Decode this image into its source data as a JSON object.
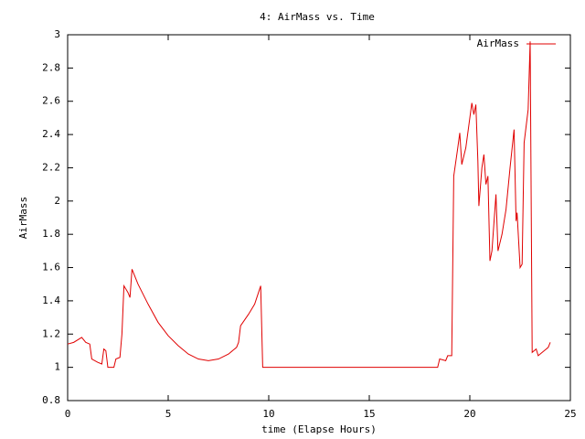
{
  "chart_data": {
    "type": "line",
    "title": "4: AirMass vs. Time",
    "x_label": "time (Elapse Hours)",
    "y_label": "AirMass",
    "xlim": [
      0,
      25
    ],
    "xticks": [
      0,
      5,
      10,
      15,
      20,
      25
    ],
    "ylim": [
      0.8,
      3
    ],
    "yticks": [
      0.8,
      1,
      1.2,
      1.4,
      1.6,
      1.8,
      2,
      2.2,
      2.4,
      2.6,
      2.8,
      3
    ],
    "grid": false,
    "legend": "top-right",
    "series": [
      {
        "name": "AirMass",
        "color": "#e00000",
        "x": [
          0,
          0.3,
          0.7,
          0.9,
          1.1,
          1.2,
          1.5,
          1.7,
          1.8,
          1.9,
          2.0,
          2.3,
          2.4,
          2.6,
          2.7,
          2.8,
          3.0,
          3.1,
          3.2,
          3.5,
          4,
          4.5,
          5,
          5.5,
          6,
          6.5,
          7,
          7.5,
          8,
          8.4,
          8.5,
          8.6,
          9,
          9.3,
          9.6,
          9.7,
          18.4,
          18.5,
          18.8,
          18.9,
          19.1,
          19.2,
          19.4,
          19.5,
          19.6,
          19.8,
          20,
          20.1,
          20.2,
          20.3,
          20.4,
          20.45,
          20.6,
          20.7,
          20.8,
          20.9,
          21.0,
          21.1,
          21.3,
          21.4,
          21.6,
          21.8,
          22.0,
          22.2,
          22.3,
          22.35,
          22.5,
          22.6,
          22.7,
          22.9,
          23.0,
          23.1,
          23.3,
          23.4,
          23.6,
          23.9,
          24.0
        ],
        "values": [
          1.14,
          1.15,
          1.18,
          1.15,
          1.14,
          1.05,
          1.03,
          1.02,
          1.11,
          1.1,
          1.0,
          1.0,
          1.05,
          1.06,
          1.2,
          1.49,
          1.45,
          1.42,
          1.59,
          1.5,
          1.38,
          1.27,
          1.19,
          1.13,
          1.08,
          1.05,
          1.04,
          1.05,
          1.08,
          1.12,
          1.15,
          1.25,
          1.32,
          1.38,
          1.49,
          1.0,
          1.0,
          1.05,
          1.04,
          1.07,
          1.07,
          2.15,
          2.32,
          2.41,
          2.22,
          2.32,
          2.5,
          2.59,
          2.52,
          2.58,
          2.24,
          1.97,
          2.2,
          2.28,
          2.1,
          2.15,
          1.64,
          1.7,
          2.04,
          1.7,
          1.8,
          1.95,
          2.2,
          2.43,
          1.88,
          1.93,
          1.6,
          1.62,
          2.35,
          2.55,
          2.96,
          1.09,
          1.11,
          1.07,
          1.09,
          1.12,
          1.15
        ]
      }
    ]
  }
}
